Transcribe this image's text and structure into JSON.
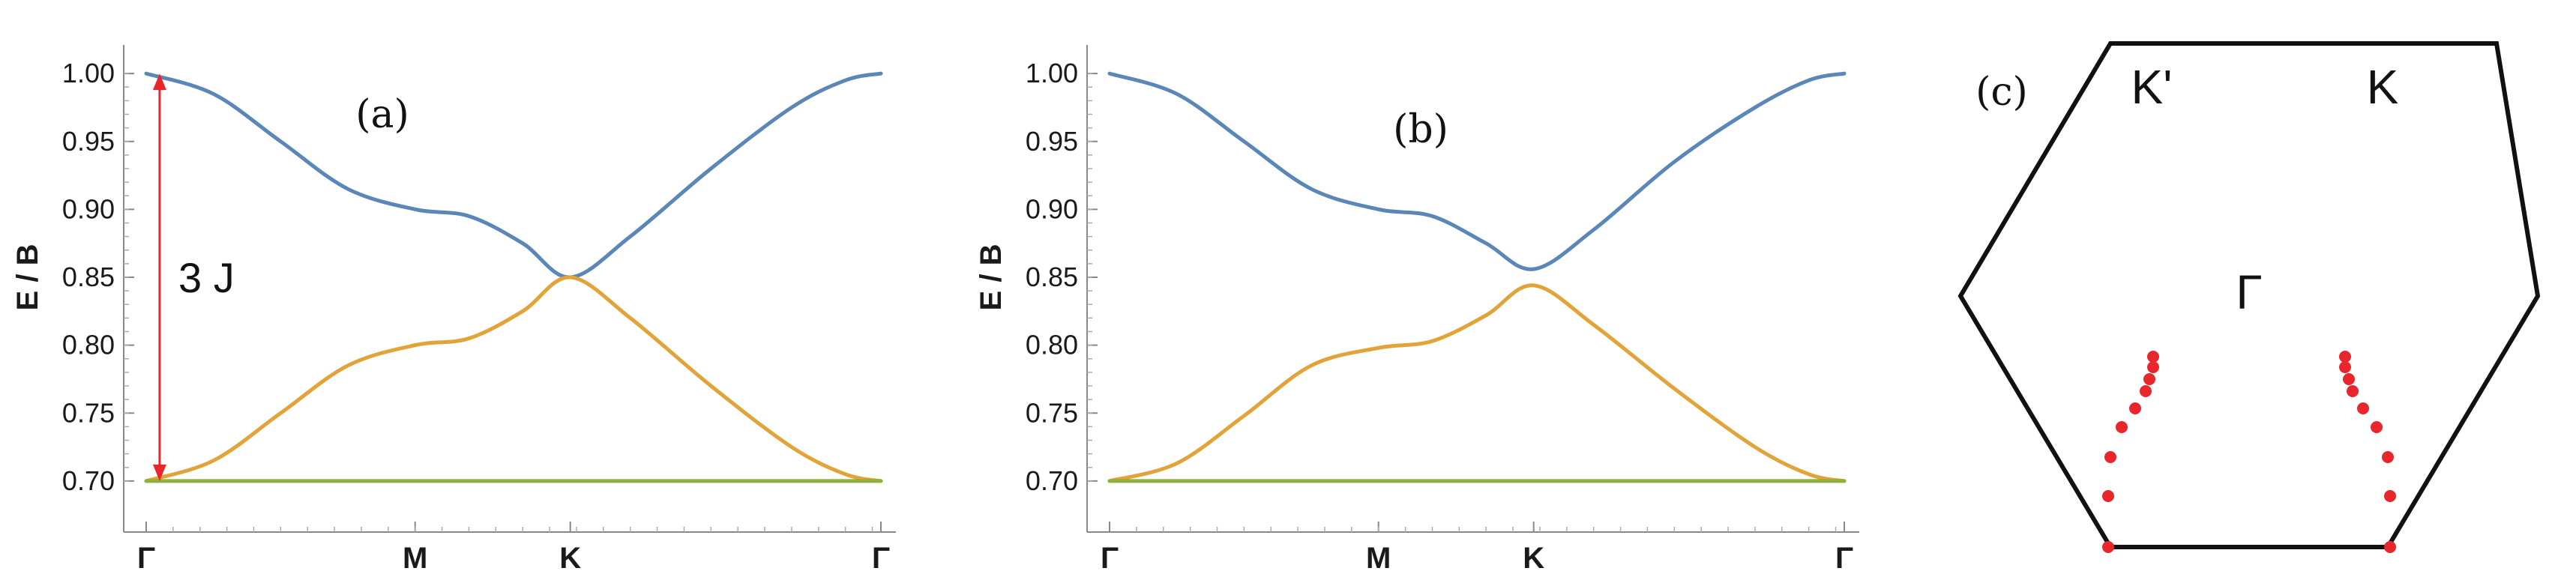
{
  "chart_data": [
    {
      "panel": "(a)",
      "type": "line",
      "ylabel": "E / B",
      "xlabel": "",
      "ylim": [
        0.69,
        1.01
      ],
      "yticks": [
        "0.70",
        "0.75",
        "0.80",
        "0.85",
        "0.90",
        "0.95",
        "1.00"
      ],
      "xticks": [
        {
          "label": "Γ",
          "x": 0.0
        },
        {
          "label": "M",
          "x": 1.0
        },
        {
          "label": "K",
          "x": 1.577
        },
        {
          "label": "Γ",
          "x": 2.732
        }
      ],
      "series": [
        {
          "color": "#5b86b8",
          "x": [
            0.0,
            0.25,
            0.5,
            0.75,
            1.0,
            1.2,
            1.4,
            1.577,
            1.8,
            2.1,
            2.4,
            2.6,
            2.732
          ],
          "y": [
            1.0,
            0.985,
            0.95,
            0.915,
            0.9,
            0.895,
            0.875,
            0.85,
            0.88,
            0.93,
            0.975,
            0.995,
            1.0
          ]
        },
        {
          "color": "#e2a339",
          "x": [
            0.0,
            0.25,
            0.5,
            0.75,
            1.0,
            1.2,
            1.4,
            1.577,
            1.8,
            2.1,
            2.4,
            2.6,
            2.732
          ],
          "y": [
            0.7,
            0.715,
            0.75,
            0.785,
            0.8,
            0.805,
            0.825,
            0.85,
            0.82,
            0.77,
            0.725,
            0.705,
            0.7
          ]
        },
        {
          "color": "#8fb03a",
          "x": [
            0.0,
            2.732
          ],
          "y": [
            0.7,
            0.7
          ]
        }
      ],
      "annotations": [
        {
          "type": "double-arrow",
          "color": "#e8262b",
          "x": 0.05,
          "y_from": 0.7,
          "y_to": 1.0
        },
        {
          "type": "text",
          "text": "3 J",
          "x": 0.12,
          "y": 0.85
        }
      ]
    },
    {
      "panel": "(b)",
      "type": "line",
      "ylabel": "E / B",
      "xlabel": "",
      "ylim": [
        0.69,
        1.01
      ],
      "yticks": [
        "0.70",
        "0.75",
        "0.80",
        "0.85",
        "0.90",
        "0.95",
        "1.00"
      ],
      "xticks": [
        {
          "label": "Γ",
          "x": 0.0
        },
        {
          "label": "M",
          "x": 1.0
        },
        {
          "label": "K",
          "x": 1.577
        },
        {
          "label": "Γ",
          "x": 2.732
        }
      ],
      "series": [
        {
          "color": "#5b86b8",
          "x": [
            0.0,
            0.25,
            0.5,
            0.75,
            1.0,
            1.2,
            1.4,
            1.577,
            1.8,
            2.1,
            2.4,
            2.6,
            2.732
          ],
          "y": [
            1.0,
            0.985,
            0.95,
            0.915,
            0.9,
            0.895,
            0.875,
            0.856,
            0.885,
            0.935,
            0.975,
            0.995,
            1.0
          ]
        },
        {
          "color": "#e2a339",
          "x": [
            0.0,
            0.25,
            0.5,
            0.75,
            1.0,
            1.2,
            1.4,
            1.577,
            1.8,
            2.1,
            2.4,
            2.6,
            2.732
          ],
          "y": [
            0.7,
            0.713,
            0.748,
            0.785,
            0.798,
            0.803,
            0.822,
            0.844,
            0.815,
            0.768,
            0.725,
            0.705,
            0.7
          ]
        },
        {
          "color": "#8fb03a",
          "x": [
            0.0,
            2.732
          ],
          "y": [
            0.7,
            0.7
          ]
        }
      ],
      "annotations": []
    }
  ],
  "panel_c": {
    "panel_label": "(c)",
    "labels": {
      "k_prime": "K'",
      "k": "K",
      "gamma": "Γ"
    },
    "hexagon_color": "#111111",
    "dot_color": "#e8262b",
    "dot_groups": 2
  }
}
